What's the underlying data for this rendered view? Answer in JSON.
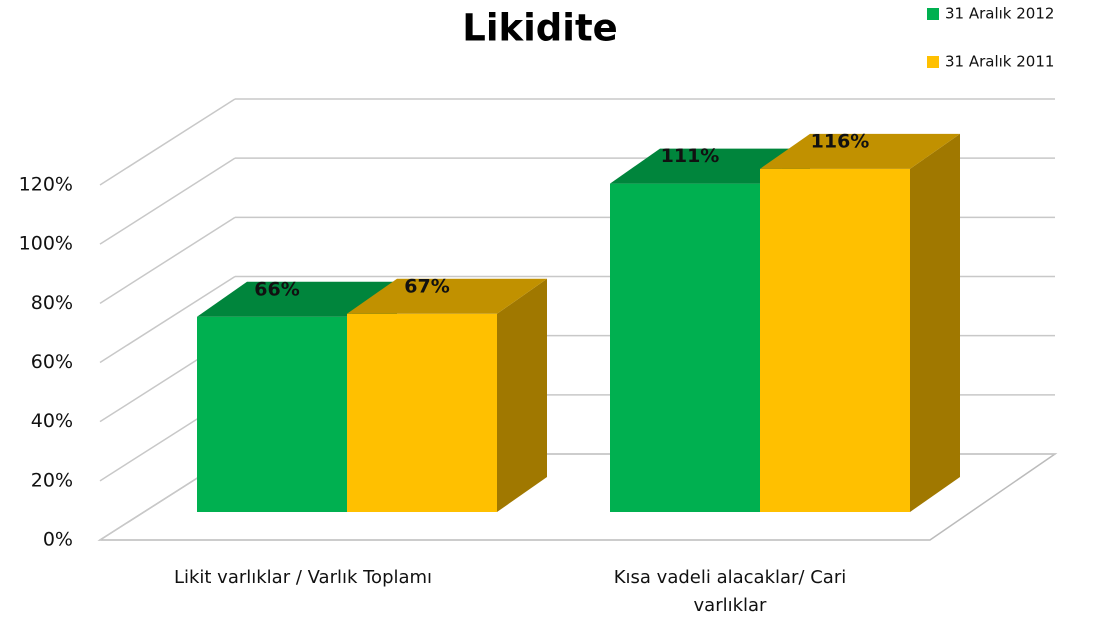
{
  "chart_data": {
    "type": "bar3d",
    "title": "Likidite",
    "categories": [
      "Likit varlıklar / Varlık Toplamı",
      "Kısa vadeli alacaklar/ Cari varlıklar"
    ],
    "series": [
      {
        "name": "31 Aralık 2012",
        "color": "#00b050",
        "values": [
          66,
          111
        ],
        "value_labels": [
          "66%",
          "111%"
        ]
      },
      {
        "name": "31 Aralık 2011",
        "color": "#ffc000",
        "values": [
          67,
          116
        ],
        "value_labels": [
          "67%",
          "116%"
        ]
      }
    ],
    "ylim": [
      0,
      120
    ],
    "yticks": [
      {
        "value": 0,
        "label": "0%"
      },
      {
        "value": 20,
        "label": "20%"
      },
      {
        "value": 40,
        "label": "40%"
      },
      {
        "value": 60,
        "label": "60%"
      },
      {
        "value": 80,
        "label": "80%"
      },
      {
        "value": 100,
        "label": "100%"
      },
      {
        "value": 120,
        "label": "120%"
      }
    ],
    "grid": true,
    "legend": "top-right"
  }
}
